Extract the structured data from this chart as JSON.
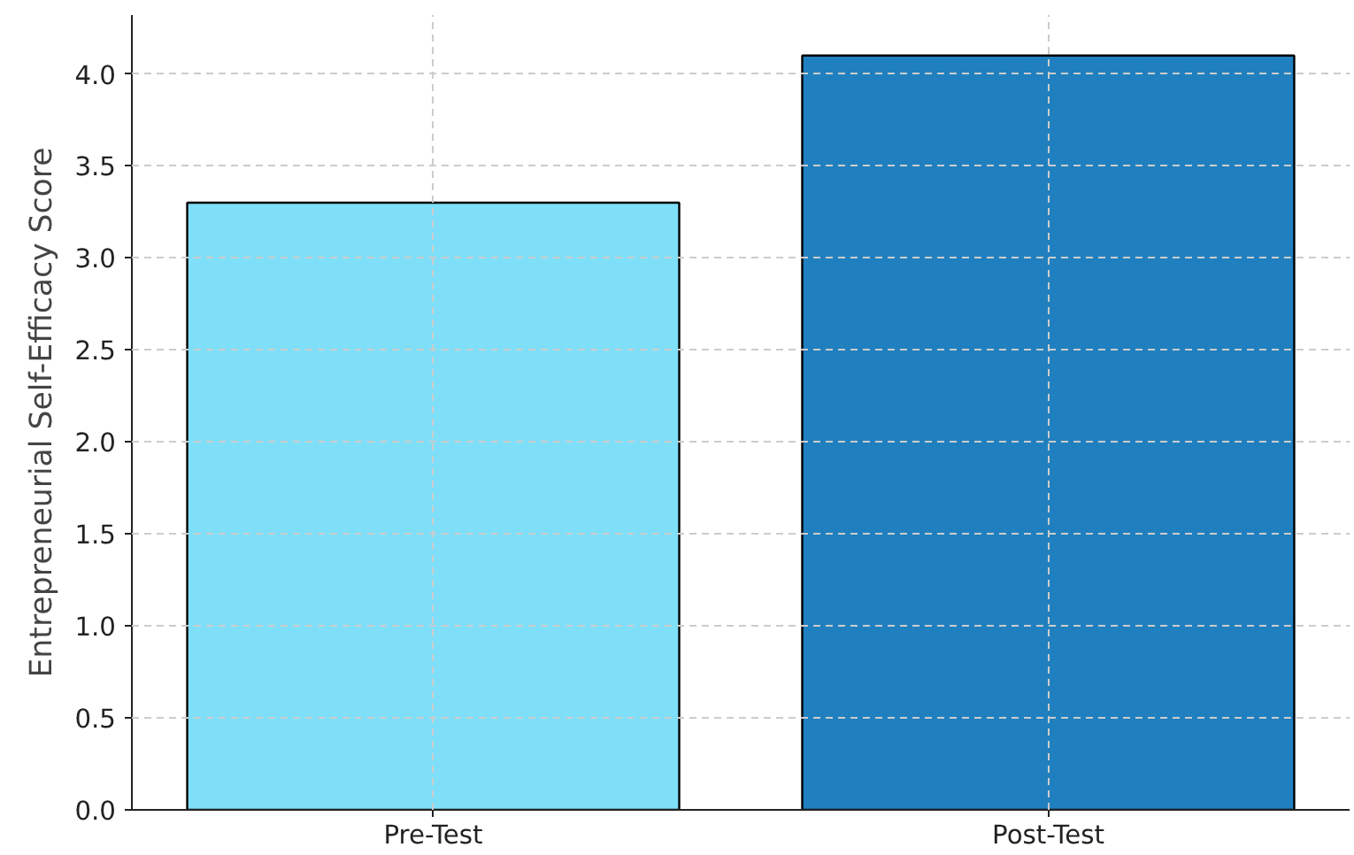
{
  "chart_data": {
    "type": "bar",
    "ylabel": "Entrepreneurial Self-Efficacy Score",
    "categories": [
      "Pre-Test",
      "Post-Test"
    ],
    "colors": [
      "#7fdff8",
      "#2080bf"
    ],
    "values": [
      3.3,
      4.1
    ],
    "ylim": [
      0,
      4.32
    ],
    "yticks": [
      {
        "value": 0,
        "label": "0.0"
      },
      {
        "value": 0.5,
        "label": "0.5"
      },
      {
        "value": 1,
        "label": "1.0"
      },
      {
        "value": 1.5,
        "label": "1.5"
      },
      {
        "value": 2,
        "label": "2.0"
      },
      {
        "value": 2.5,
        "label": "2.5"
      },
      {
        "value": 3,
        "label": "3.0"
      },
      {
        "value": 3.5,
        "label": "3.5"
      },
      {
        "value": 4,
        "label": "4.0"
      }
    ],
    "grid": true
  }
}
